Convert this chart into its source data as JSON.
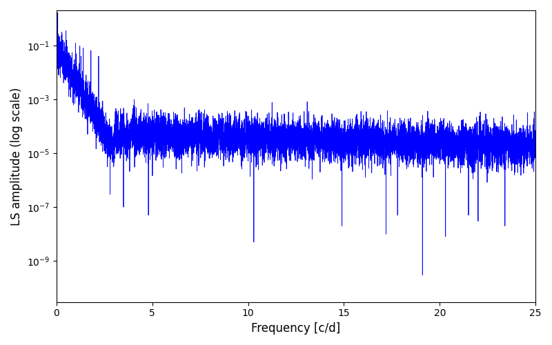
{
  "xlabel": "Frequency [c/d]",
  "ylabel": "LS amplitude (log scale)",
  "xlim": [
    0,
    25
  ],
  "ylim": [
    3e-11,
    2.0
  ],
  "line_color": "#0000ff",
  "line_width": 0.6,
  "yscale": "log",
  "yticks": [
    1e-09,
    1e-07,
    1e-05,
    0.001,
    0.1
  ],
  "xticks": [
    0,
    5,
    10,
    15,
    20,
    25
  ],
  "figsize": [
    8.0,
    5.0
  ],
  "dpi": 100,
  "seed": 12345,
  "n_freqs": 8000,
  "freq_max": 25.0
}
